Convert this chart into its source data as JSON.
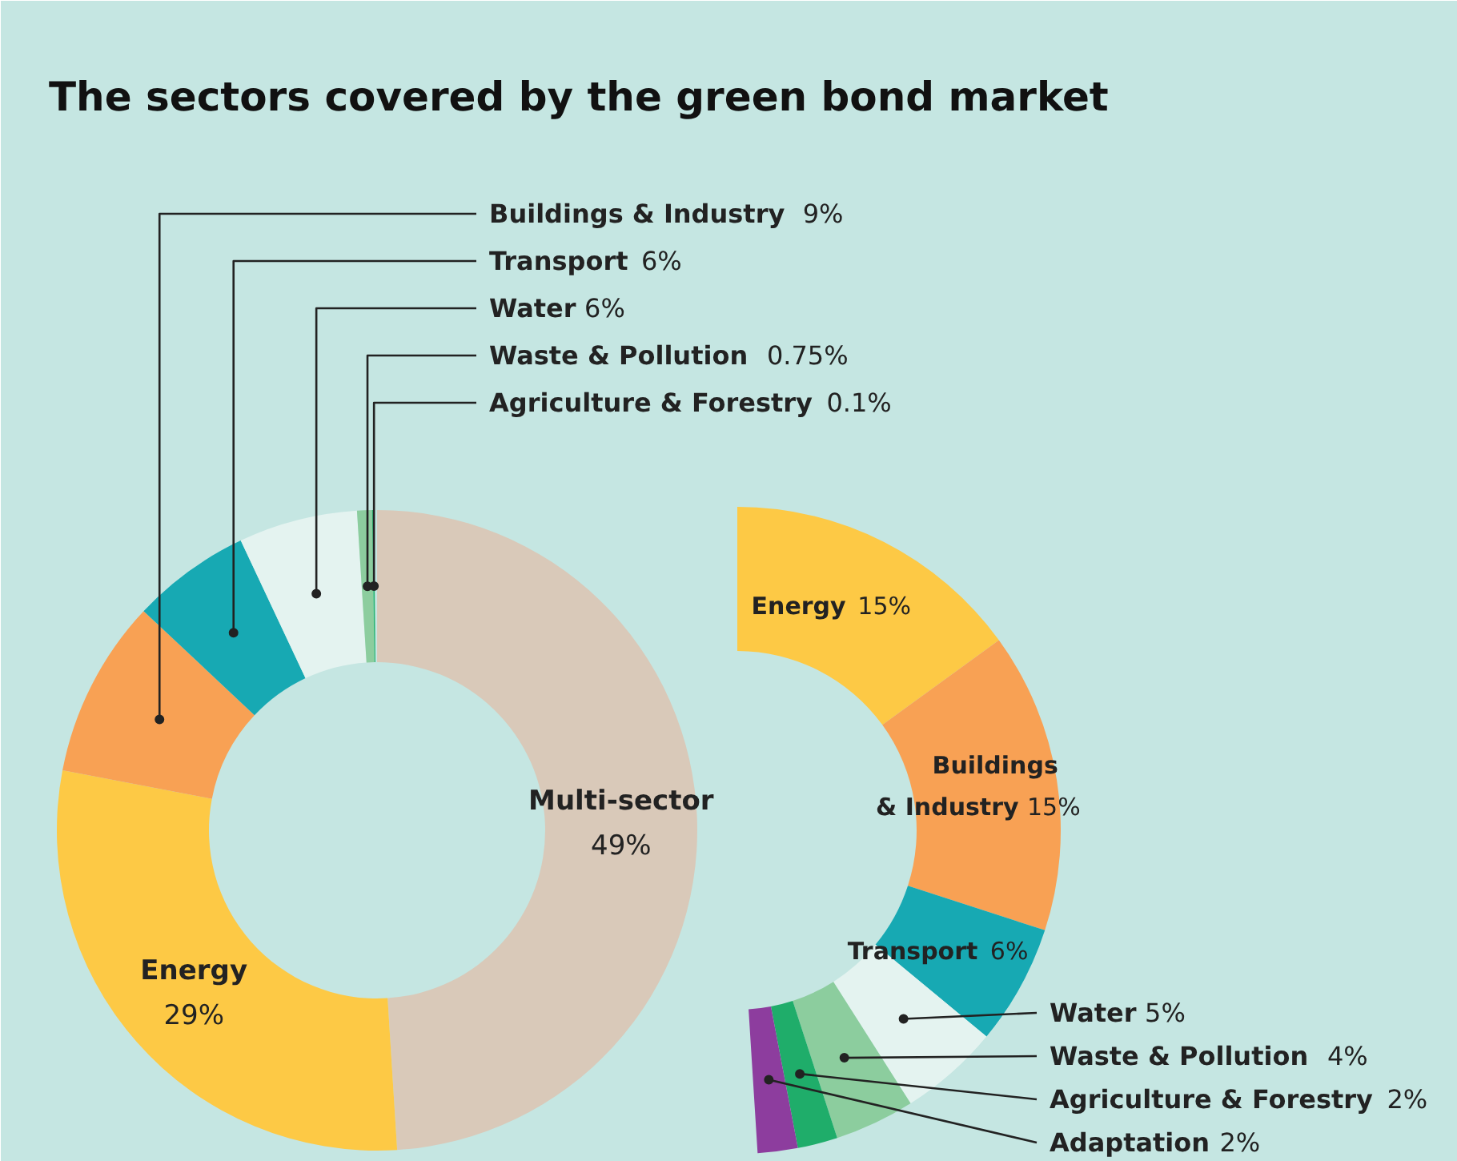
{
  "chart_data": [
    {
      "type": "donut",
      "title": "The sectors covered by the green bond market",
      "categories": [
        "Multi-sector",
        "Energy",
        "Buildings & Industry",
        "Transport",
        "Water",
        "Waste & Pollution",
        "Agriculture & Forestry"
      ],
      "values": [
        49,
        29,
        9,
        6,
        6,
        0.75,
        0.1
      ],
      "value_labels": [
        "49%",
        "29%",
        "9%",
        "6%",
        "6%",
        "0.75%",
        "0.1%"
      ],
      "colors": [
        "#d9c9b9",
        "#fdc945",
        "#f8a154",
        "#17a9b3",
        "#e4f3f0",
        "#8ccd9e",
        "#2fb574"
      ]
    },
    {
      "type": "donut",
      "categories": [
        "Energy",
        "Buildings & Industry",
        "Transport",
        "Water",
        "Waste & Pollution",
        "Agriculture & Forestry",
        "Adaptation"
      ],
      "values": [
        15,
        15,
        6,
        5,
        4,
        2,
        2
      ],
      "value_labels": [
        "15%",
        "15%",
        "6%",
        "5%",
        "4%",
        "2%",
        "2%"
      ],
      "colors": [
        "#fdc945",
        "#f8a154",
        "#17a9b3",
        "#e4f3f0",
        "#8ccd9e",
        "#1fad6a",
        "#8d3d9e"
      ]
    }
  ]
}
